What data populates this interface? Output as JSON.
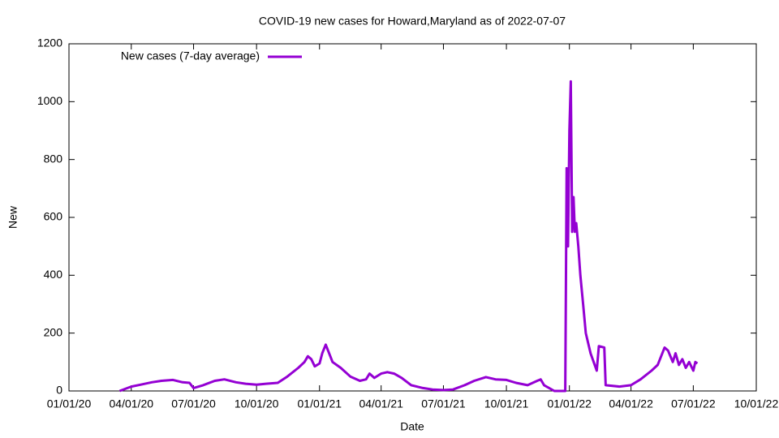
{
  "chart_data": {
    "type": "line",
    "title": "COVID-19 new cases for Howard,Maryland as of 2022-07-07",
    "x_label": "Date",
    "y_label": "New",
    "x": [
      "03/15/20",
      "04/01/20",
      "04/15/20",
      "05/01/20",
      "05/15/20",
      "06/01/20",
      "06/15/20",
      "06/25/20",
      "07/01/20",
      "07/15/20",
      "08/01/20",
      "08/15/20",
      "09/01/20",
      "09/15/20",
      "10/01/20",
      "10/15/20",
      "11/01/20",
      "11/15/20",
      "12/01/20",
      "12/10/20",
      "12/15/20",
      "12/20/20",
      "12/25/20",
      "01/01/21",
      "01/05/21",
      "01/10/21",
      "01/15/21",
      "01/20/21",
      "02/01/21",
      "02/15/21",
      "03/01/21",
      "03/10/21",
      "03/15/21",
      "03/22/21",
      "04/01/21",
      "04/10/21",
      "04/20/21",
      "05/01/21",
      "05/15/21",
      "06/01/21",
      "06/15/21",
      "07/01/21",
      "07/15/21",
      "08/01/21",
      "08/15/21",
      "09/01/21",
      "09/15/21",
      "10/01/21",
      "10/15/21",
      "11/01/21",
      "11/15/21",
      "11/20/21",
      "11/25/21",
      "12/10/21",
      "12/26/21",
      "12/28/21",
      "12/30/21",
      "01/01/22",
      "01/03/22",
      "01/05/22",
      "01/07/22",
      "01/09/22",
      "01/11/22",
      "01/14/22",
      "01/17/22",
      "01/21/22",
      "01/25/22",
      "02/01/22",
      "02/10/22",
      "02/13/22",
      "02/21/22",
      "02/23/22",
      "03/15/22",
      "04/01/22",
      "04/15/22",
      "05/01/22",
      "05/10/22",
      "05/20/22",
      "05/25/22",
      "06/01/22",
      "06/05/22",
      "06/10/22",
      "06/15/22",
      "06/20/22",
      "06/25/22",
      "07/01/22",
      "07/04/22",
      "07/07/22"
    ],
    "series": [
      {
        "name": "New cases (7-day average)",
        "color": "#9400d3",
        "values": [
          0,
          15,
          22,
          30,
          35,
          38,
          30,
          28,
          10,
          20,
          35,
          40,
          30,
          25,
          22,
          25,
          28,
          50,
          80,
          100,
          120,
          110,
          85,
          95,
          130,
          160,
          130,
          100,
          80,
          50,
          35,
          40,
          60,
          45,
          60,
          65,
          60,
          45,
          20,
          10,
          5,
          3,
          5,
          20,
          35,
          48,
          40,
          38,
          28,
          20,
          35,
          40,
          20,
          0,
          0,
          770,
          500,
          900,
          1070,
          550,
          670,
          550,
          580,
          500,
          400,
          300,
          200,
          130,
          70,
          155,
          150,
          20,
          15,
          20,
          40,
          70,
          90,
          150,
          140,
          100,
          130,
          90,
          110,
          80,
          100,
          70,
          100,
          95
        ]
      }
    ],
    "xlim": [
      "01/01/20",
      "10/01/22"
    ],
    "xticks": [
      "01/01/20",
      "04/01/20",
      "07/01/20",
      "10/01/20",
      "01/01/21",
      "04/01/21",
      "07/01/21",
      "10/01/21",
      "01/01/22",
      "04/01/22",
      "07/01/22",
      "10/01/22"
    ],
    "ylim": [
      0,
      1200
    ],
    "yticks": [
      0,
      200,
      400,
      600,
      800,
      1000,
      1200
    ],
    "legend": "top-left"
  }
}
